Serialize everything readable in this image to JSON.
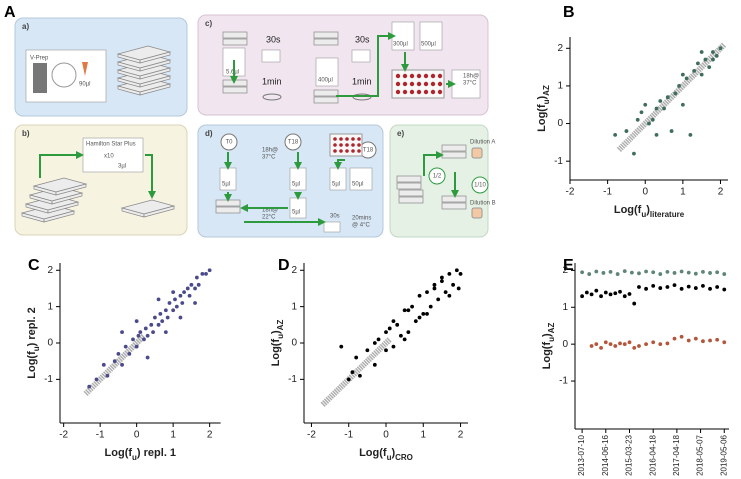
{
  "panel_letters": [
    "A",
    "B",
    "C",
    "D",
    "E"
  ],
  "diagram": {
    "panels": [
      {
        "label": "a)",
        "texts": [
          "V-Prep",
          "90µl"
        ]
      },
      {
        "label": "b)",
        "texts": [
          "Hamilton Star Plus",
          "x10",
          "3µl"
        ]
      },
      {
        "label": "c)",
        "texts": [
          "30s",
          "5.6µl",
          "1min",
          "30s",
          "400µl",
          "1min",
          "300µl",
          "500µl",
          "18h@",
          "37°C"
        ]
      },
      {
        "label": "d)",
        "texts": [
          "T0",
          "T18",
          "T18",
          "18h@",
          "37°C",
          "5µl",
          "5µl",
          "5µl",
          "50µl",
          "5µl",
          "18h@",
          "22°C",
          "30s",
          "20mins",
          "@ 4°C"
        ]
      },
      {
        "label": "e)",
        "texts": [
          "1/2",
          "1/10",
          "Dilution A",
          "Dilution B"
        ]
      }
    ]
  },
  "chart_data": [
    {
      "type": "scatter",
      "x_label": [
        "Log(f",
        "u",
        ")",
        "literature"
      ],
      "y_label": [
        "Log(f",
        "u",
        ")",
        "AZ"
      ],
      "xlim": [
        -2,
        2.2
      ],
      "ylim": [
        -1.5,
        2.3
      ],
      "xticks": [
        -2,
        -1,
        0,
        1,
        2
      ],
      "yticks": [
        -1,
        0,
        1,
        2
      ],
      "series": [
        {
          "marker": "band",
          "color": "#a6a6a6",
          "x": [
            -0.7,
            2.1
          ],
          "values": [
            -0.7,
            2.1
          ]
        },
        {
          "marker": "dot",
          "color": "#3f6e5c",
          "x": [
            -0.8,
            -0.5,
            -0.3,
            -0.1,
            0,
            0.1,
            0.2,
            0.3,
            0.4,
            0.5,
            0.6,
            0.7,
            0.8,
            0.9,
            1.0,
            1.1,
            1.2,
            1.3,
            1.4,
            1.5,
            1.6,
            1.7,
            1.8,
            1.9,
            2.0,
            0.3,
            1.0,
            1.5,
            1.8,
            -0.2
          ],
          "values": [
            -0.3,
            -0.2,
            -0.8,
            0.3,
            0.5,
            0.0,
            0.1,
            0.4,
            0.6,
            0.4,
            0.7,
            -0.2,
            0.8,
            1.0,
            1.3,
            1.2,
            -0.3,
            1.4,
            1.6,
            1.3,
            1.7,
            1.5,
            1.9,
            1.8,
            2.0,
            -0.3,
            0.5,
            1.9,
            1.7,
            0.1
          ]
        }
      ]
    },
    {
      "type": "scatter",
      "x_label": [
        "Log(f",
        "u",
        ") repl. 1"
      ],
      "y_label": [
        "Log(f",
        "u",
        ") repl. 2"
      ],
      "xlim": [
        -2.1,
        2.3
      ],
      "ylim": [
        -2.2,
        2.2
      ],
      "xticks": [
        -2,
        -1,
        0,
        1,
        2
      ],
      "yticks": [
        -1,
        0,
        1,
        2
      ],
      "series": [
        {
          "marker": "band",
          "color": "#a6a6a6",
          "x": [
            -1.4,
            0.2
          ],
          "values": [
            -1.4,
            0.2
          ]
        },
        {
          "marker": "dot",
          "color": "#4b4a8c",
          "x": [
            -1.3,
            -1.1,
            -0.9,
            -0.8,
            -0.6,
            -0.5,
            -0.4,
            -0.3,
            -0.2,
            -0.1,
            0,
            0.05,
            0.1,
            0.2,
            0.25,
            0.3,
            0.4,
            0.45,
            0.5,
            0.6,
            0.65,
            0.7,
            0.8,
            0.85,
            0.9,
            1.0,
            1.05,
            1.1,
            1.2,
            1.25,
            1.3,
            1.4,
            1.45,
            1.5,
            1.6,
            1.65,
            1.7,
            1.8,
            1.9,
            2.0,
            0.3,
            0.8,
            1.2,
            0.0,
            1.6,
            -0.4,
            0.6,
            1.0
          ],
          "values": [
            -1.2,
            -1.0,
            -0.6,
            -0.9,
            -0.5,
            -0.3,
            -0.6,
            -0.1,
            -0.3,
            0.1,
            -0.1,
            0.2,
            0.3,
            0.1,
            0.4,
            0.2,
            0.5,
            0.3,
            0.7,
            0.5,
            0.8,
            0.6,
            0.9,
            0.7,
            1.1,
            0.9,
            1.2,
            1.0,
            1.3,
            1.1,
            1.4,
            1.5,
            1.3,
            1.6,
            1.5,
            1.8,
            1.6,
            1.9,
            1.9,
            2.0,
            -0.4,
            0.3,
            0.7,
            0.6,
            1.1,
            0.3,
            1.2,
            1.4
          ]
        }
      ]
    },
    {
      "type": "scatter",
      "x_label": [
        "Log(f",
        "u",
        ")",
        "CRO"
      ],
      "y_label": [
        "Log(f",
        "u",
        ")",
        "AZ"
      ],
      "xlim": [
        -2.2,
        2.2
      ],
      "ylim": [
        -2.2,
        2.2
      ],
      "xticks": [
        -2,
        -1,
        0,
        1,
        2
      ],
      "yticks": [
        -1,
        0,
        1,
        2
      ],
      "series": [
        {
          "marker": "band",
          "color": "#a6a6a6",
          "x": [
            -1.7,
            0.1
          ],
          "values": [
            -1.7,
            0.1
          ]
        },
        {
          "marker": "dot",
          "color": "#000000",
          "x": [
            -1.2,
            -1.0,
            -0.8,
            -0.7,
            -0.5,
            -0.3,
            -0.2,
            0,
            0.1,
            0.2,
            0.3,
            0.4,
            0.5,
            0.6,
            0.7,
            0.8,
            0.9,
            1.0,
            1.1,
            1.2,
            1.3,
            1.4,
            1.5,
            1.6,
            1.7,
            1.8,
            1.9,
            2.0,
            -0.9,
            -0.3,
            0.2,
            0.5,
            0.9,
            1.3,
            1.7,
            1.95,
            0.0,
            0.6,
            1.1,
            1.5
          ],
          "values": [
            -0.1,
            -1.0,
            -0.4,
            -0.9,
            -0.2,
            -0.6,
            0.1,
            -0.2,
            0.4,
            -0.1,
            0.5,
            0.2,
            0.9,
            0.3,
            1.0,
            0.6,
            1.3,
            0.8,
            1.4,
            1.0,
            1.6,
            1.2,
            1.7,
            1.4,
            1.9,
            1.6,
            2.0,
            1.9,
            -0.8,
            0.0,
            0.6,
            0.1,
            0.7,
            1.5,
            1.3,
            1.5,
            0.3,
            0.9,
            0.8,
            1.8
          ]
        }
      ]
    },
    {
      "type": "scatter",
      "y_label": [
        "Log(f",
        "u",
        ")",
        "AZ"
      ],
      "rotate_x_labels": true,
      "xlim": [
        -0.3,
        6.2
      ],
      "ylim": [
        -2.3,
        2.2
      ],
      "xticks": [
        {
          "value": 0,
          "label": "2013-07-10"
        },
        {
          "value": 1,
          "label": "2014-06-16"
        },
        {
          "value": 2,
          "label": "2015-03-23"
        },
        {
          "value": 3,
          "label": "2016-04-18"
        },
        {
          "value": 4,
          "label": "2017-04-18"
        },
        {
          "value": 5,
          "label": "2018-05-07"
        },
        {
          "value": 6,
          "label": "2019-05-06"
        }
      ],
      "yticks": [
        -1,
        0,
        1,
        2
      ],
      "series": [
        {
          "marker": "dot",
          "color": "#5f8577",
          "x": [
            0,
            0.3,
            0.6,
            0.9,
            1.2,
            1.5,
            1.8,
            2.1,
            2.4,
            2.7,
            3.0,
            3.3,
            3.6,
            3.9,
            4.2,
            4.5,
            4.8,
            5.1,
            5.4,
            5.7,
            6.0
          ],
          "values": [
            1.95,
            1.9,
            1.97,
            1.93,
            1.96,
            1.9,
            1.98,
            1.94,
            1.92,
            1.97,
            1.95,
            1.9,
            1.96,
            1.93,
            1.97,
            1.94,
            1.91,
            1.96,
            1.93,
            1.95,
            1.9
          ]
        },
        {
          "marker": "dot",
          "color": "#000000",
          "x": [
            0,
            0.2,
            0.4,
            0.6,
            0.8,
            1.0,
            1.2,
            1.4,
            1.6,
            1.8,
            2.0,
            2.2,
            2.4,
            2.7,
            3.0,
            3.3,
            3.6,
            3.9,
            4.2,
            4.5,
            4.8,
            5.1,
            5.4,
            5.7,
            6.0
          ],
          "values": [
            1.3,
            1.4,
            1.35,
            1.45,
            1.3,
            1.4,
            1.35,
            1.38,
            1.42,
            1.3,
            1.36,
            1.1,
            1.55,
            1.5,
            1.58,
            1.52,
            1.55,
            1.6,
            1.5,
            1.56,
            1.52,
            1.58,
            1.5,
            1.55,
            1.48
          ]
        },
        {
          "marker": "dot",
          "color": "#b5553a",
          "x": [
            0.4,
            0.6,
            0.8,
            1.0,
            1.2,
            1.4,
            1.6,
            1.8,
            2.0,
            2.2,
            2.4,
            2.7,
            3.0,
            3.3,
            3.6,
            3.9,
            4.2,
            4.5,
            4.8,
            5.1,
            5.4,
            5.7,
            6.0
          ],
          "values": [
            -0.05,
            0.0,
            -0.1,
            0.05,
            0.0,
            -0.05,
            0.02,
            0.0,
            0.05,
            -0.1,
            -0.05,
            0.0,
            0.05,
            0.0,
            0.02,
            0.15,
            0.2,
            0.1,
            0.15,
            0.08,
            0.1,
            0.12,
            0.05
          ]
        }
      ]
    }
  ]
}
